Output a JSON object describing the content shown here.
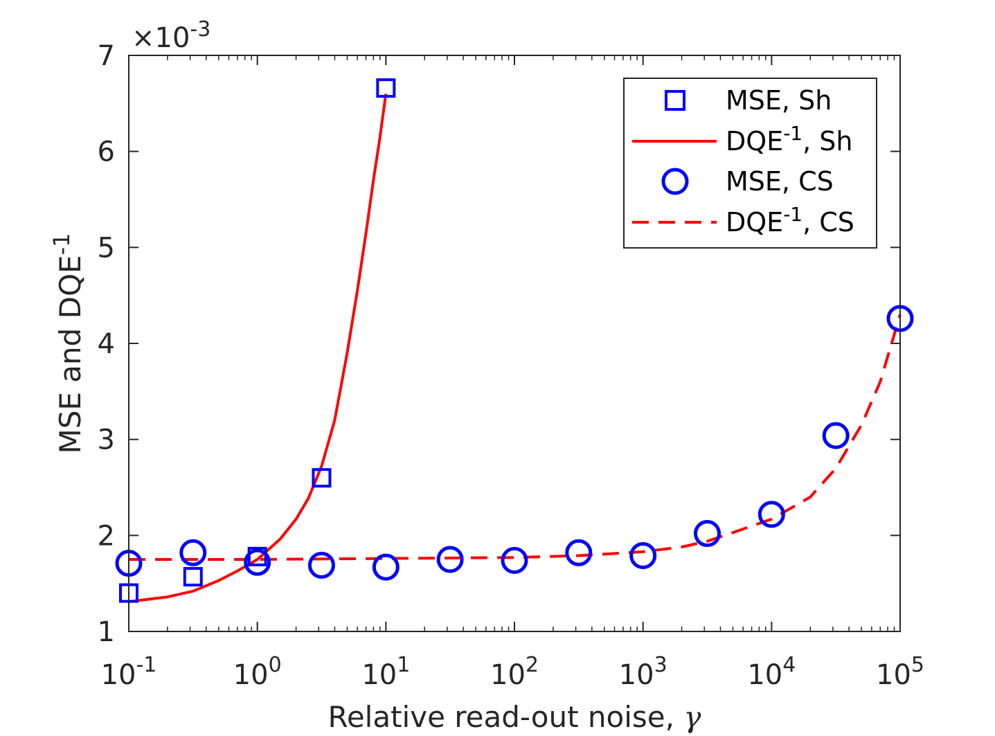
{
  "chart_data": {
    "type": "scatter",
    "title": "",
    "xlabel": "Relative read-out noise, ",
    "xlabel_symbol": "γ",
    "ylabel": "MSE and DQE",
    "ylabel_sup": "-1",
    "xscale": "log",
    "xlim": [
      0.1,
      100000
    ],
    "ylim": [
      0.001,
      0.007
    ],
    "y_multiplier_base": "×10",
    "y_multiplier_exp": "-3",
    "xticks": [
      {
        "base": "10",
        "exp": "-1",
        "value": 0.1
      },
      {
        "base": "10",
        "exp": "0",
        "value": 1
      },
      {
        "base": "10",
        "exp": "1",
        "value": 10
      },
      {
        "base": "10",
        "exp": "2",
        "value": 100
      },
      {
        "base": "10",
        "exp": "3",
        "value": 1000
      },
      {
        "base": "10",
        "exp": "4",
        "value": 10000
      },
      {
        "base": "10",
        "exp": "5",
        "value": 100000
      }
    ],
    "yticks": [
      {
        "label": "1",
        "value": 0.001
      },
      {
        "label": "2",
        "value": 0.002
      },
      {
        "label": "3",
        "value": 0.003
      },
      {
        "label": "4",
        "value": 0.004
      },
      {
        "label": "5",
        "value": 0.005
      },
      {
        "label": "6",
        "value": 0.006
      },
      {
        "label": "7",
        "value": 0.007
      }
    ],
    "legend_position": "top-right",
    "series": [
      {
        "name": "MSE, Sh",
        "legend_main": "MSE, Sh",
        "legend_sup": "",
        "legend_suffix": "",
        "kind": "marker",
        "marker": "square",
        "color": "#0000ff",
        "x": [
          0.1,
          0.316,
          1,
          3.16,
          10
        ],
        "y": [
          0.0014,
          0.00157,
          0.00178,
          0.0026,
          0.00666
        ]
      },
      {
        "name": "DQE^-1, Sh",
        "legend_main": "DQE",
        "legend_sup": "-1",
        "legend_suffix": ", Sh",
        "kind": "line",
        "line_style": "solid",
        "color": "#ff0000",
        "x": [
          0.1,
          0.2,
          0.316,
          0.5,
          0.7,
          1,
          1.5,
          2,
          2.5,
          3.16,
          4,
          5,
          6,
          7,
          8,
          9,
          10
        ],
        "y": [
          0.00131,
          0.00136,
          0.00142,
          0.00153,
          0.00163,
          0.00175,
          0.00196,
          0.00217,
          0.00239,
          0.00272,
          0.0032,
          0.0039,
          0.00455,
          0.00515,
          0.0057,
          0.00615,
          0.0066
        ]
      },
      {
        "name": "MSE, CS",
        "legend_main": "MSE, CS",
        "legend_sup": "",
        "legend_suffix": "",
        "kind": "marker",
        "marker": "circle",
        "color": "#0000ff",
        "x": [
          0.1,
          0.316,
          1,
          3.16,
          10,
          31.6,
          100,
          316,
          1000,
          3162,
          10000,
          31623,
          100000
        ],
        "y": [
          0.00171,
          0.00182,
          0.00172,
          0.00169,
          0.00167,
          0.00175,
          0.00174,
          0.00182,
          0.00179,
          0.00202,
          0.00222,
          0.00304,
          0.00426
        ]
      },
      {
        "name": "DQE^-1, CS",
        "legend_main": "DQE",
        "legend_sup": "-1",
        "legend_suffix": ", CS",
        "kind": "line",
        "line_style": "dashed",
        "color": "#ff0000",
        "x": [
          0.1,
          1,
          10,
          100,
          316,
          1000,
          2000,
          3162,
          5000,
          10000,
          20000,
          31623,
          50000,
          70000,
          100000
        ],
        "y": [
          0.00175,
          0.00175,
          0.00176,
          0.00177,
          0.00179,
          0.00183,
          0.00188,
          0.00194,
          0.00203,
          0.00217,
          0.0024,
          0.0027,
          0.00315,
          0.0036,
          0.0043
        ]
      }
    ]
  }
}
